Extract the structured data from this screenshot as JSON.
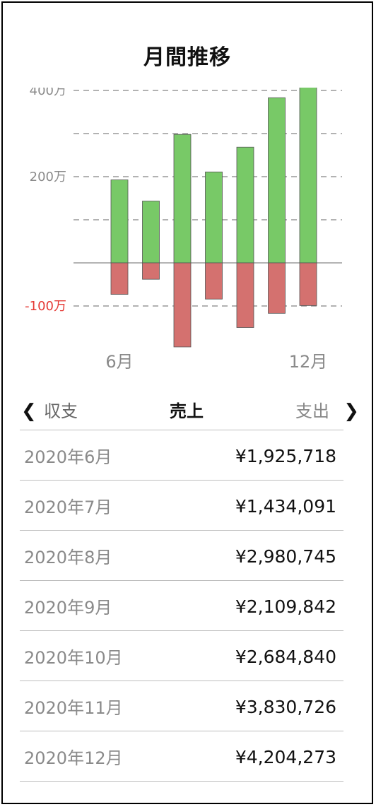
{
  "title": "月間推移",
  "chart_data": {
    "type": "bar",
    "categories": [
      "2020年6月",
      "2020年7月",
      "2020年8月",
      "2020年9月",
      "2020年10月",
      "2020年11月",
      "2020年12月"
    ],
    "series": [
      {
        "name": "売上",
        "values": [
          1925718,
          1434091,
          2980745,
          2109842,
          2684840,
          3830726,
          4204273
        ]
      },
      {
        "name": "支出",
        "values": [
          -730000,
          -380000,
          -1950000,
          -840000,
          -1500000,
          -1170000,
          -990000
        ]
      }
    ],
    "y_tick_labels": [
      {
        "value": 4000000,
        "label": "400万"
      },
      {
        "value": 2000000,
        "label": "200万"
      },
      {
        "value": -1000000,
        "label": "-100万"
      }
    ],
    "x_tick_labels": [
      {
        "index": 0,
        "label": "6月"
      },
      {
        "index": 6,
        "label": "12月"
      }
    ],
    "gridlines": [
      4000000,
      3000000,
      2000000,
      1000000,
      -1000000
    ],
    "ylim": [
      -2000000,
      4000000
    ],
    "colors": {
      "positive": "#78c967",
      "negative": "#d4716f",
      "negative_label": "#e53935",
      "grid": "#999999",
      "zero_line": "#888888"
    }
  },
  "nav": {
    "prev_icon": "chevron-left-icon",
    "next_icon": "chevron-right-icon",
    "tabs": [
      "収支",
      "売上",
      "支出"
    ],
    "selected": "売上"
  },
  "list": [
    {
      "month": "2020年6月",
      "amount": "¥1,925,718"
    },
    {
      "month": "2020年7月",
      "amount": "¥1,434,091"
    },
    {
      "month": "2020年8月",
      "amount": "¥2,980,745"
    },
    {
      "month": "2020年9月",
      "amount": "¥2,109,842"
    },
    {
      "month": "2020年10月",
      "amount": "¥2,684,840"
    },
    {
      "month": "2020年11月",
      "amount": "¥3,830,726"
    },
    {
      "month": "2020年12月",
      "amount": "¥4,204,273"
    }
  ]
}
